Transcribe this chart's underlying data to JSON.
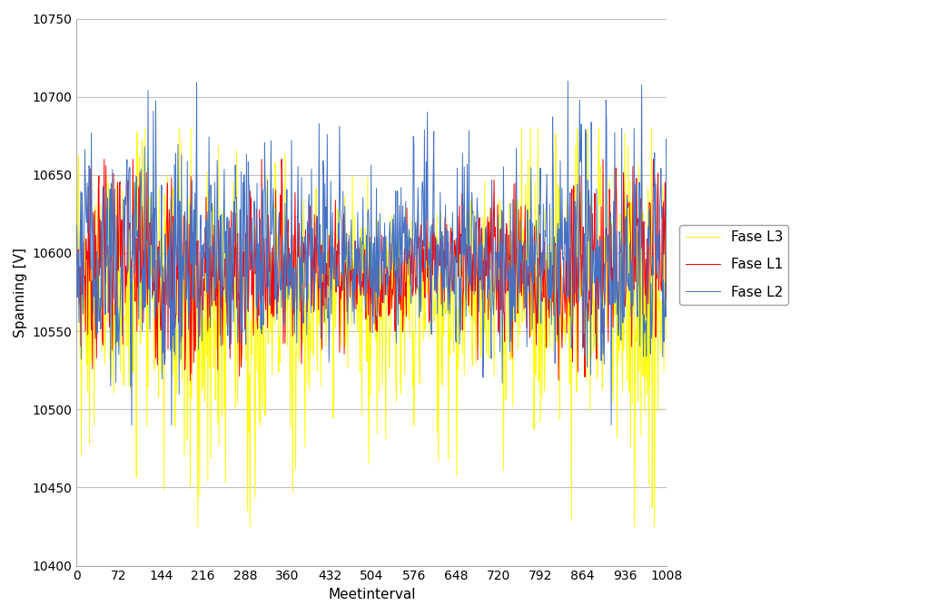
{
  "title": "",
  "xlabel": "Meetinterval",
  "ylabel": "Spanning [V]",
  "ylim": [
    10400,
    10750
  ],
  "xlim": [
    0,
    1008
  ],
  "xticks": [
    0,
    72,
    144,
    216,
    288,
    360,
    432,
    504,
    576,
    648,
    720,
    792,
    864,
    936,
    1008
  ],
  "yticks": [
    10400,
    10450,
    10500,
    10550,
    10600,
    10650,
    10700,
    10750
  ],
  "color_L1": "#FF0000",
  "color_L2": "#4472C4",
  "color_L3": "#FFFF00",
  "legend_labels": [
    "Fase L1",
    "Fase L2",
    "Fase L3"
  ],
  "n_points": 1009,
  "background": "#FFFFFF",
  "grid_color": "#C0C0C0",
  "linewidth": 0.7,
  "legend_edgecolor": "#888888"
}
